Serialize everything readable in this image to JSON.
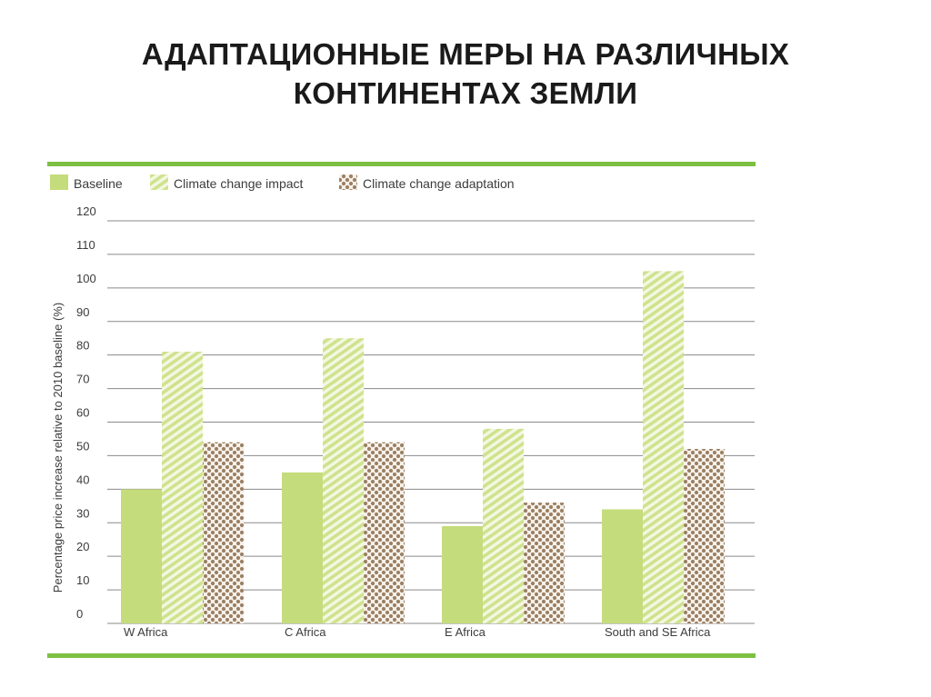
{
  "slide": {
    "title_line1": "АДАПТАЦИОННЫЕ МЕРЫ НА РАЗЛИЧНЫХ",
    "title_line2": "КОНТИНЕНТАХ ЗЕМЛИ"
  },
  "chart_data": {
    "type": "bar",
    "title": "",
    "xlabel": "",
    "ylabel": "Percentage price increase relative to 2010 baseline (%)",
    "ylim": [
      0,
      120
    ],
    "yticks": [
      "0",
      "10",
      "20",
      "30",
      "40",
      "50",
      "60",
      "70",
      "80",
      "90",
      "100",
      "110",
      "120"
    ],
    "grid": true,
    "legend_position": "top-left",
    "categories": [
      "W Africa",
      "C Africa",
      "E Africa",
      "South and SE Africa"
    ],
    "series": [
      {
        "name": "Baseline",
        "values": [
          40,
          45,
          29,
          34
        ],
        "color": "#c5dc7c",
        "pattern": "solid"
      },
      {
        "name": "Climate change impact",
        "values": [
          81,
          85,
          58,
          105
        ],
        "color": "#d4e59a",
        "pattern": "diagonal-stripes"
      },
      {
        "name": "Climate change adaptation",
        "values": [
          54,
          54,
          36,
          52
        ],
        "color": "#9a7f62",
        "pattern": "dots"
      }
    ],
    "frame_color": "#7cc043"
  }
}
